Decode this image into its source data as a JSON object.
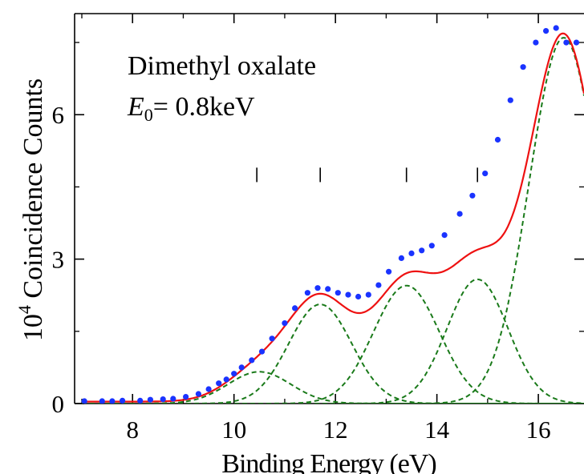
{
  "chart_data": {
    "type": "line",
    "annotation": {
      "line1": "Dimethyl oxalate",
      "line2_var": "E",
      "line2_sub": "0",
      "line2_rest": "= 0.8keV"
    },
    "xlabel": "Binding Energy (eV)",
    "ylabel_base": "10",
    "ylabel_exp": "4",
    "ylabel_rest": " Coincidence Counts",
    "xlim": [
      7.0,
      16.9
    ],
    "ylim": [
      0,
      7.9
    ],
    "x_ticks": [
      8,
      10,
      12,
      14,
      16
    ],
    "x_tick_labels": [
      "8",
      "10",
      "12",
      "14",
      "16"
    ],
    "y_ticks": [
      0,
      3,
      6
    ],
    "y_tick_labels": [
      "0",
      "3",
      "6"
    ],
    "markers_x": [
      10.45,
      11.7,
      13.4,
      14.8
    ],
    "markers_y": [
      4.6,
      4.9
    ],
    "colors": {
      "fit": "#ee1111",
      "data": "#1a33ff",
      "components": "#1a7a1a",
      "axis": "#000000"
    },
    "series": [
      {
        "kind": "points",
        "values": [
          [
            7.05,
            0.05
          ],
          [
            7.4,
            0.05
          ],
          [
            7.6,
            0.05
          ],
          [
            7.8,
            0.06
          ],
          [
            8.15,
            0.06
          ],
          [
            8.35,
            0.08
          ],
          [
            8.6,
            0.09
          ],
          [
            8.8,
            0.1
          ],
          [
            9.05,
            0.14
          ],
          [
            9.3,
            0.2
          ],
          [
            9.5,
            0.3
          ],
          [
            9.7,
            0.42
          ],
          [
            9.85,
            0.5
          ],
          [
            10.0,
            0.62
          ],
          [
            10.15,
            0.75
          ],
          [
            10.35,
            0.9
          ],
          [
            10.55,
            1.08
          ],
          [
            10.75,
            1.35
          ],
          [
            11.0,
            1.67
          ],
          [
            11.2,
            1.98
          ],
          [
            11.45,
            2.3
          ],
          [
            11.65,
            2.4
          ],
          [
            11.85,
            2.38
          ],
          [
            12.05,
            2.3
          ],
          [
            12.25,
            2.26
          ],
          [
            12.45,
            2.22
          ],
          [
            12.65,
            2.26
          ],
          [
            12.85,
            2.46
          ],
          [
            13.05,
            2.74
          ],
          [
            13.3,
            3.02
          ],
          [
            13.5,
            3.12
          ],
          [
            13.7,
            3.18
          ],
          [
            13.9,
            3.28
          ],
          [
            14.15,
            3.5
          ],
          [
            14.45,
            3.94
          ],
          [
            14.7,
            4.32
          ],
          [
            14.95,
            4.78
          ],
          [
            15.2,
            5.48
          ],
          [
            15.45,
            6.3
          ],
          [
            15.7,
            6.99
          ],
          [
            15.95,
            7.5
          ],
          [
            16.15,
            7.74
          ],
          [
            16.35,
            7.8
          ],
          [
            16.55,
            7.5
          ],
          [
            16.75,
            7.5
          ]
        ]
      },
      {
        "kind": "gaussian",
        "center": 10.5,
        "amplitude": 0.66,
        "sigma": 0.62
      },
      {
        "kind": "gaussian",
        "center": 11.7,
        "amplitude": 2.06,
        "sigma": 0.62
      },
      {
        "kind": "gaussian",
        "center": 13.4,
        "amplitude": 2.45,
        "sigma": 0.65
      },
      {
        "kind": "gaussian",
        "center": 14.8,
        "amplitude": 2.58,
        "sigma": 0.6
      },
      {
        "kind": "gaussian",
        "center": 16.5,
        "amplitude": 7.6,
        "sigma": 0.68
      }
    ]
  }
}
